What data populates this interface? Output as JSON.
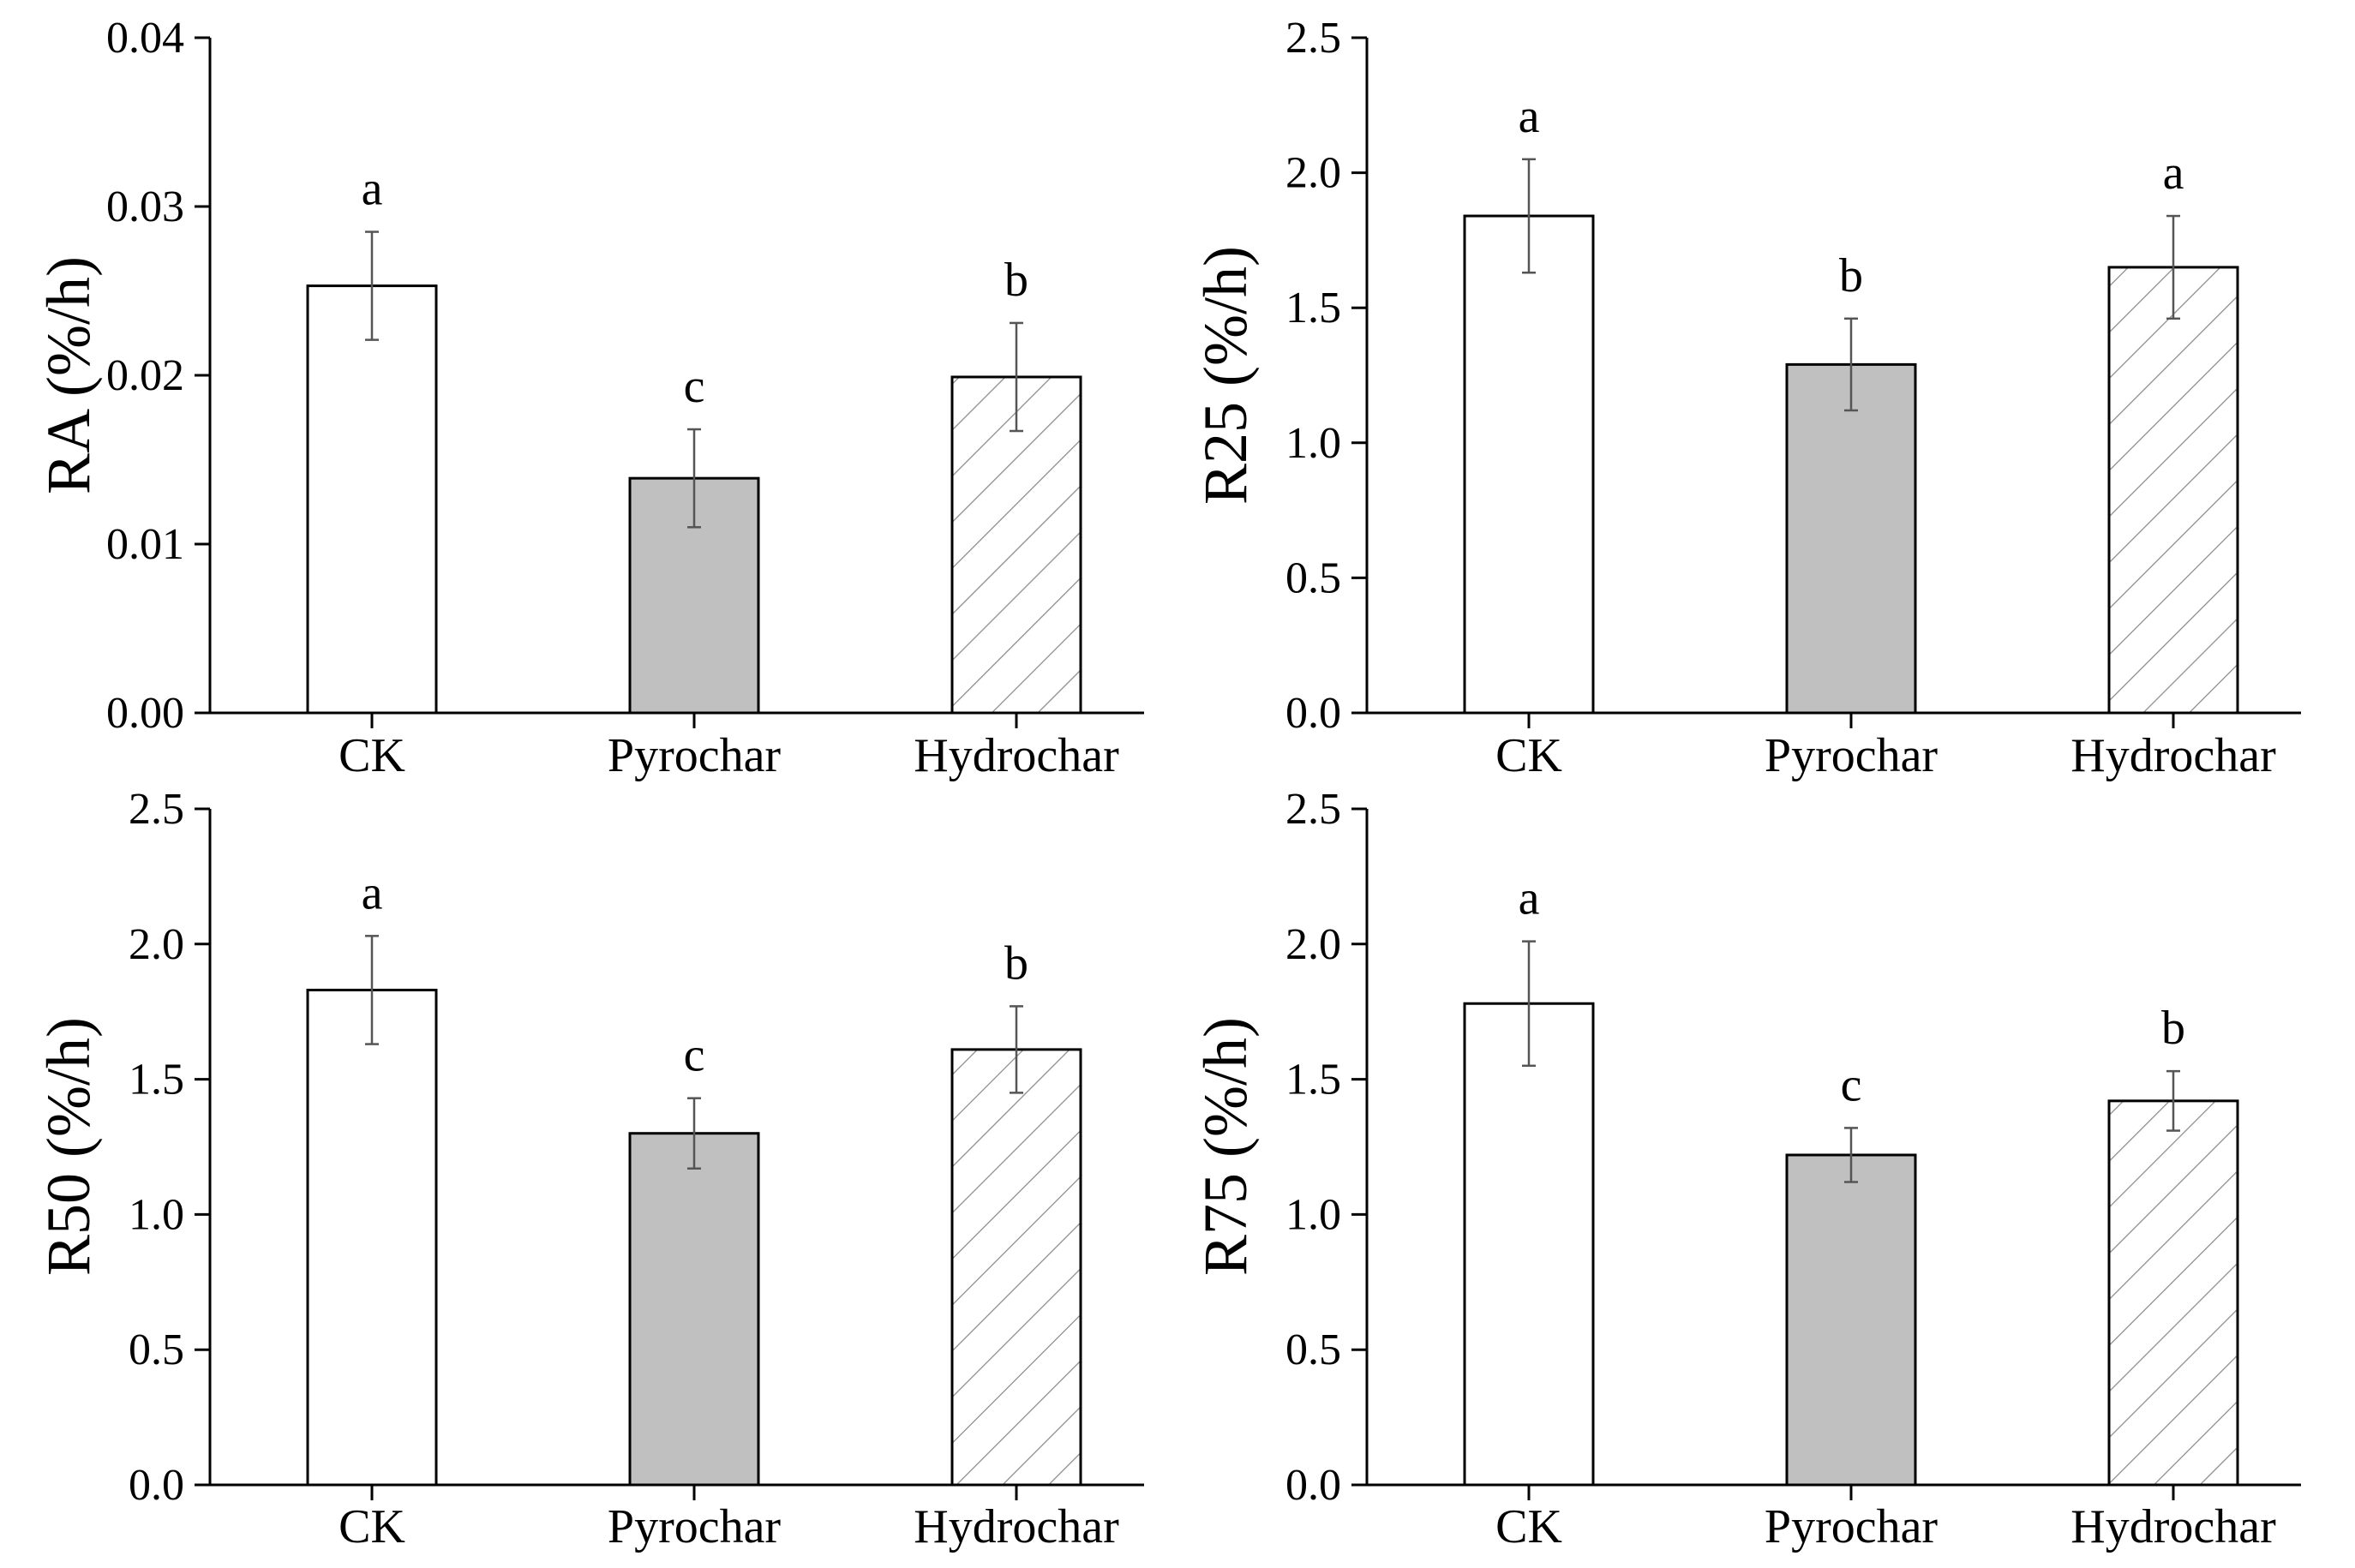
{
  "chart_data": [
    {
      "type": "bar",
      "ylabel": "RA (%/h)",
      "categories": [
        "CK",
        "Pyrochar",
        "Hydrochar"
      ],
      "values": [
        0.0253,
        0.0139,
        0.0199
      ],
      "errors": [
        0.0032,
        0.0029,
        0.0032
      ],
      "significance": [
        "a",
        "c",
        "b"
      ],
      "ylim": [
        0,
        0.04
      ],
      "yticks": [
        "0.00",
        "0.01",
        "0.02",
        "0.03",
        "0.04"
      ]
    },
    {
      "type": "bar",
      "ylabel": "R25 (%/h)",
      "categories": [
        "CK",
        "Pyrochar",
        "Hydrochar"
      ],
      "values": [
        1.84,
        1.29,
        1.65
      ],
      "errors": [
        0.21,
        0.17,
        0.19
      ],
      "significance": [
        "a",
        "b",
        "a"
      ],
      "ylim": [
        0,
        2.5
      ],
      "yticks": [
        "0.0",
        "0.5",
        "1.0",
        "1.5",
        "2.0",
        "2.5"
      ]
    },
    {
      "type": "bar",
      "ylabel": "R50 (%/h)",
      "categories": [
        "CK",
        "Pyrochar",
        "Hydrochar"
      ],
      "values": [
        1.83,
        1.3,
        1.61
      ],
      "errors": [
        0.2,
        0.13,
        0.16
      ],
      "significance": [
        "a",
        "c",
        "b"
      ],
      "ylim": [
        0,
        2.5
      ],
      "yticks": [
        "0.0",
        "0.5",
        "1.0",
        "1.5",
        "2.0",
        "2.5"
      ]
    },
    {
      "type": "bar",
      "ylabel": "R75 (%/h)",
      "categories": [
        "CK",
        "Pyrochar",
        "Hydrochar"
      ],
      "values": [
        1.78,
        1.22,
        1.42
      ],
      "errors": [
        0.23,
        0.1,
        0.11
      ],
      "significance": [
        "a",
        "c",
        "b"
      ],
      "ylim": [
        0,
        2.5
      ],
      "yticks": [
        "0.0",
        "0.5",
        "1.0",
        "1.5",
        "2.0",
        "2.5"
      ]
    }
  ],
  "style": {
    "bar_fills": [
      "#ffffff",
      "#c0c0c0",
      "hatch"
    ],
    "hatch_color": "#8a8a8a",
    "error_color": "#555555"
  }
}
